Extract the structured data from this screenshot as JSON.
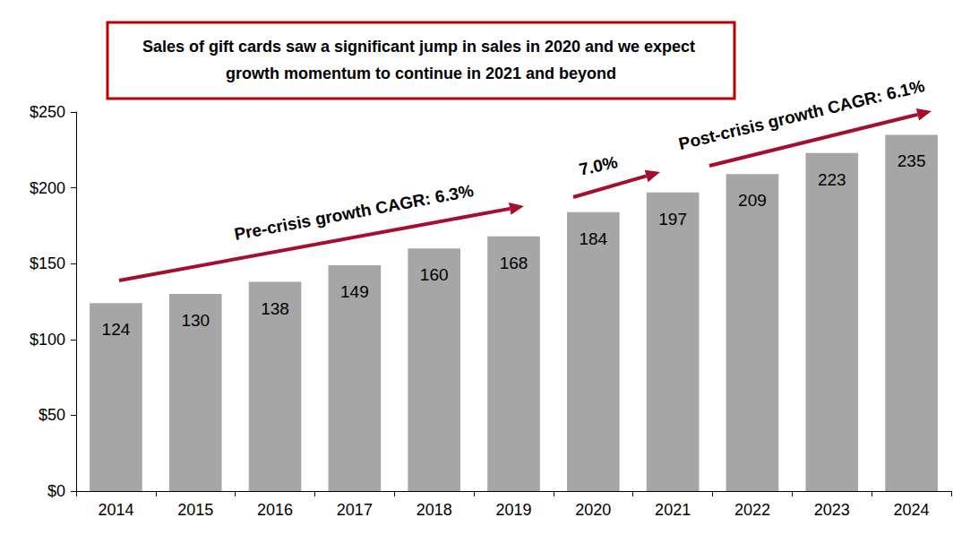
{
  "chart_data": {
    "type": "bar",
    "title": "Sales of gift cards saw a significant jump in sales in 2020 and we expect growth momentum to continue in 2021 and beyond",
    "annotations": [
      "Pre-crisis growth CAGR: 6.3%",
      "7.0%",
      "Post-crisis growth CAGR: 6.1%"
    ],
    "categories": [
      "2014",
      "2015",
      "2016",
      "2017",
      "2018",
      "2019",
      "2020",
      "2021",
      "2022",
      "2023",
      "2024"
    ],
    "values": [
      124,
      130,
      138,
      149,
      160,
      168,
      184,
      197,
      209,
      223,
      235
    ],
    "color": "#a6a6a6",
    "ylim": [
      0,
      250
    ],
    "yticks": [
      {
        "value": 0,
        "label": "$0"
      },
      {
        "value": 50,
        "label": "$50"
      },
      {
        "value": 100,
        "label": "$100"
      },
      {
        "value": 150,
        "label": "$150"
      },
      {
        "value": 200,
        "label": "$200"
      },
      {
        "value": 250,
        "label": "$250"
      }
    ],
    "grid": false,
    "data_labels": true
  }
}
